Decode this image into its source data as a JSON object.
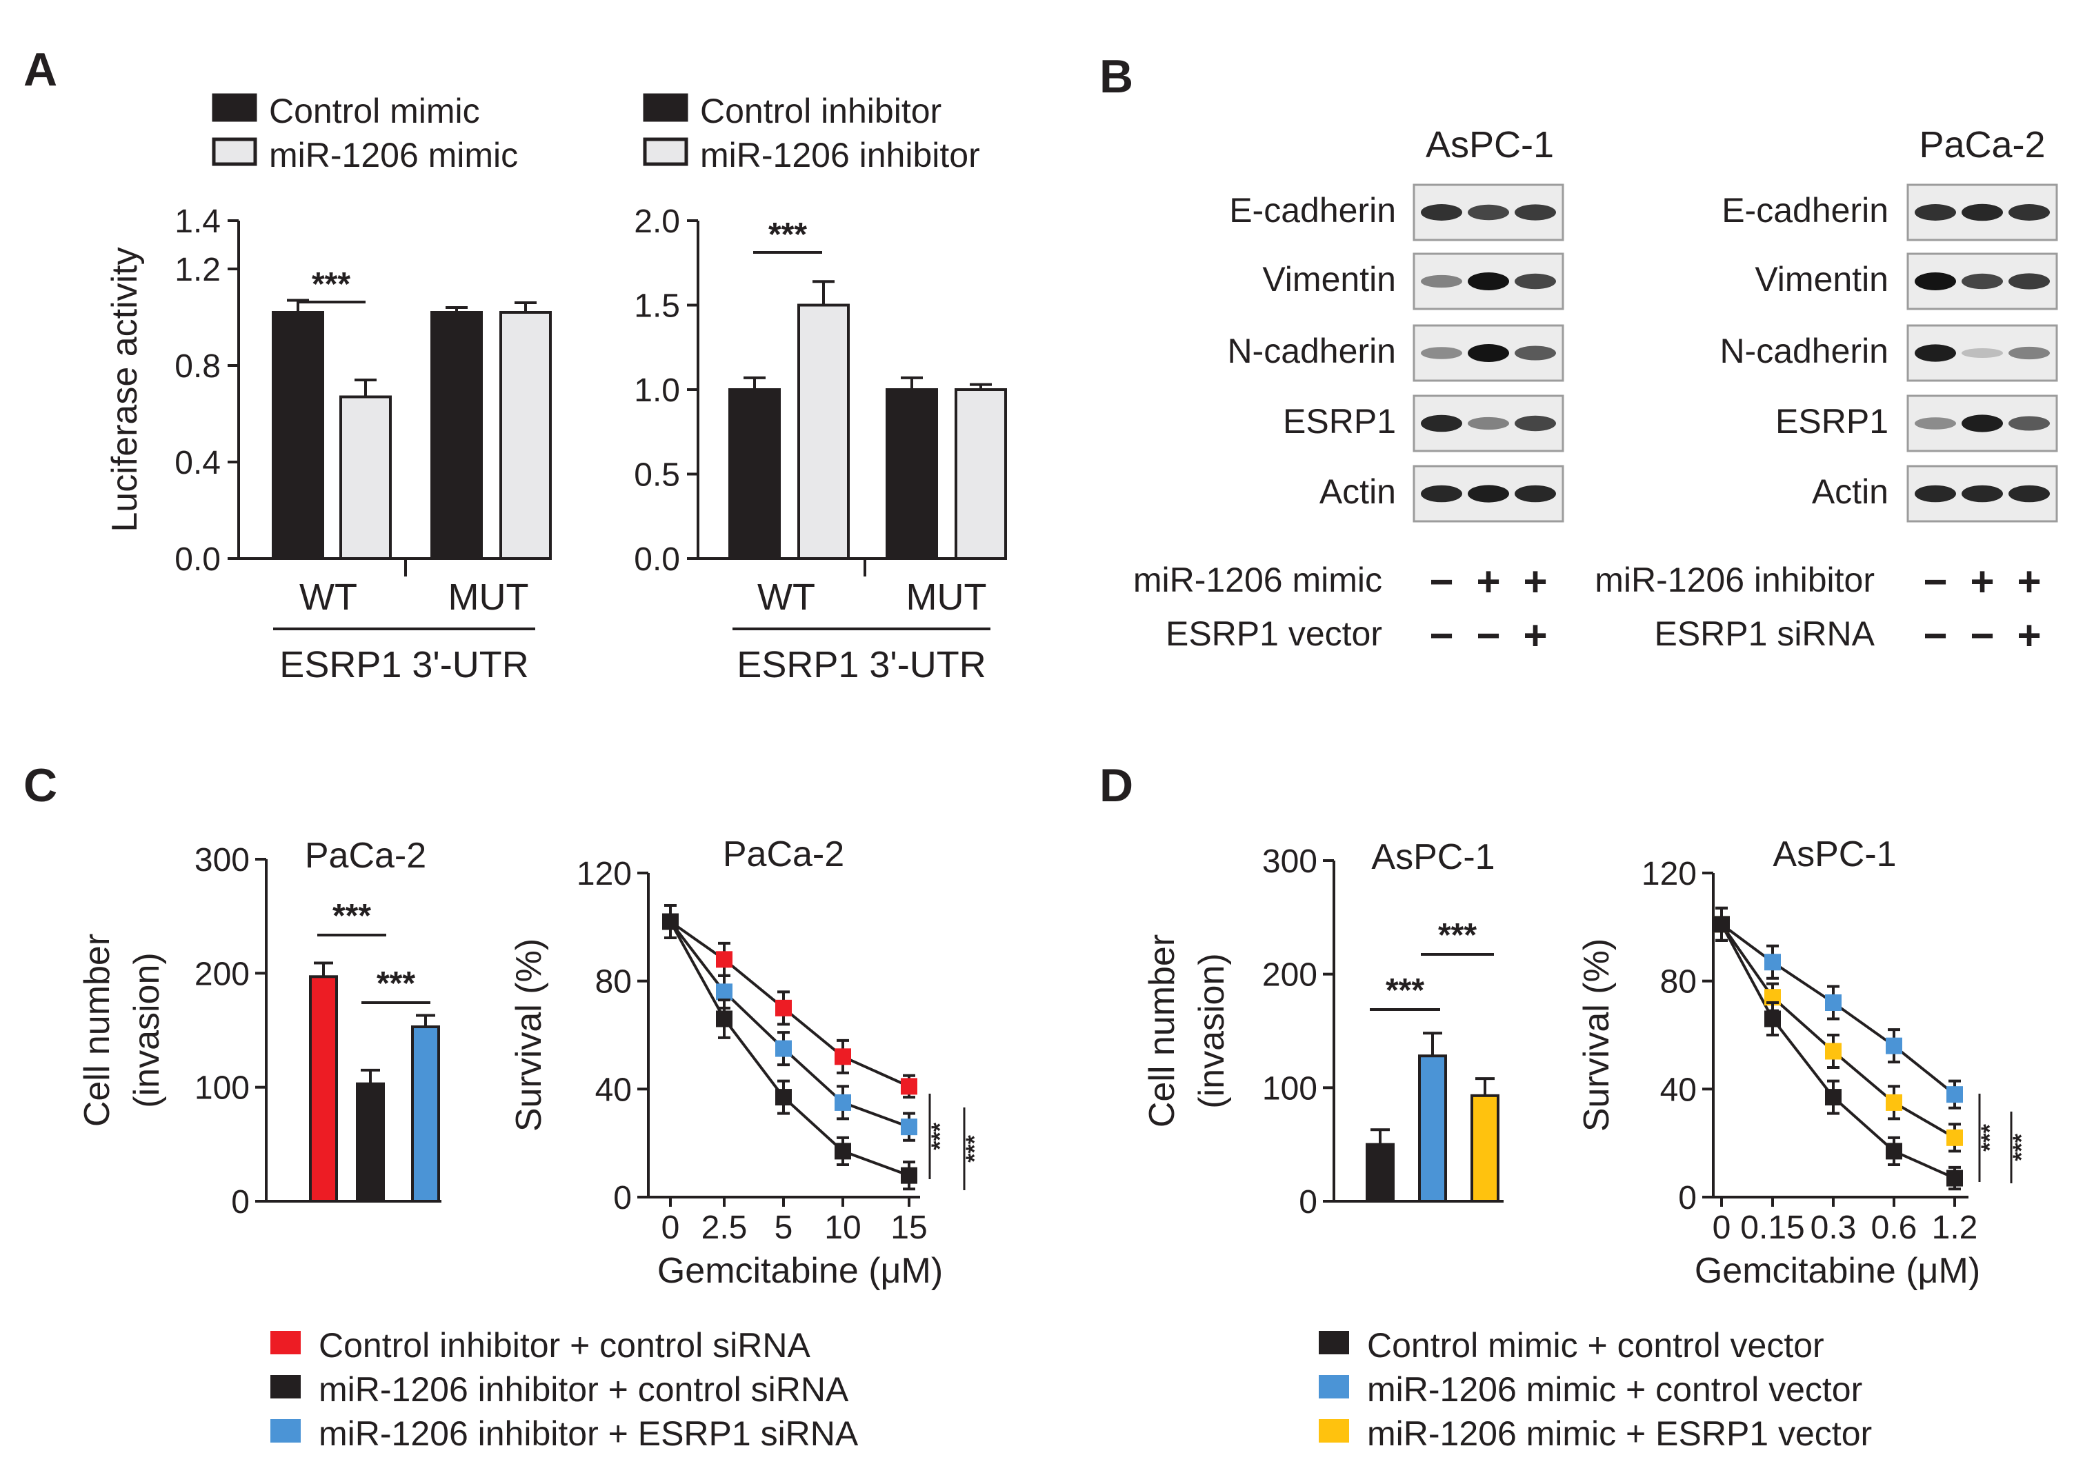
{
  "figure": {
    "panel_A": {
      "letter": "A",
      "left": {
        "legend": [
          "Control mimic",
          "miR-1206 mimic"
        ],
        "ylabel": "Luciferase activity",
        "yticks": [
          "0.0",
          "0.4",
          "0.8",
          "1.2",
          "1.4"
        ],
        "groups": [
          "WT",
          "MUT"
        ],
        "xlabel": "ESRP1 3'-UTR",
        "sig": "***"
      },
      "right": {
        "legend": [
          "Control inhibitor",
          "miR-1206 inhibitor"
        ],
        "yticks": [
          "0.0",
          "0.5",
          "1.0",
          "1.5",
          "2.0"
        ],
        "groups": [
          "WT",
          "MUT"
        ],
        "xlabel": "ESRP1 3'-UTR",
        "sig": "***"
      }
    },
    "panel_B": {
      "letter": "B",
      "left": {
        "cell_line": "AsPC-1",
        "proteins": [
          "E-cadherin",
          "Vimentin",
          "N-cadherin",
          "ESRP1",
          "Actin"
        ],
        "conditions": [
          {
            "label": "miR-1206 mimic",
            "signs": [
              "−",
              "+",
              "+"
            ]
          },
          {
            "label": "ESRP1 vector",
            "signs": [
              "−",
              "−",
              "+"
            ]
          }
        ],
        "band_intensity": [
          [
            0.85,
            0.75,
            0.8
          ],
          [
            0.45,
            1.0,
            0.75
          ],
          [
            0.4,
            1.0,
            0.65
          ],
          [
            0.9,
            0.45,
            0.75
          ],
          [
            0.9,
            0.95,
            0.9
          ]
        ]
      },
      "right": {
        "cell_line": "PaCa-2",
        "proteins": [
          "E-cadherin",
          "Vimentin",
          "N-cadherin",
          "ESRP1",
          "Actin"
        ],
        "conditions": [
          {
            "label": "miR-1206 inhibitor",
            "signs": [
              "−",
              "+",
              "+"
            ]
          },
          {
            "label": "ESRP1 siRNA",
            "signs": [
              "−",
              "−",
              "+"
            ]
          }
        ],
        "band_intensity": [
          [
            0.85,
            0.9,
            0.85
          ],
          [
            1.0,
            0.75,
            0.8
          ],
          [
            0.95,
            0.15,
            0.45
          ],
          [
            0.4,
            0.95,
            0.65
          ],
          [
            0.9,
            0.9,
            0.9
          ]
        ]
      }
    },
    "panel_C": {
      "letter": "C",
      "legend": [
        {
          "label": "Control inhibitor + control siRNA",
          "color": "#ed1c24"
        },
        {
          "label": "miR-1206 inhibitor + control siRNA",
          "color": "#231f20"
        },
        {
          "label": "miR-1206 inhibitor + ESRP1 siRNA",
          "color": "#4b94d6"
        }
      ],
      "bar": {
        "title": "PaCa-2",
        "ylabel_lines": [
          "Cell number",
          "(invasion)"
        ],
        "yticks": [
          "0",
          "100",
          "200",
          "300"
        ],
        "sig": [
          "***",
          "***"
        ]
      },
      "line": {
        "title": "PaCa-2",
        "ylabel": "Survival (%)",
        "yticks": [
          "0",
          "40",
          "80",
          "120"
        ],
        "xticks": [
          "0",
          "2.5",
          "5",
          "10",
          "15"
        ],
        "xlabel": "Gemcitabine (μM)",
        "sig": [
          "***",
          "***"
        ]
      }
    },
    "panel_D": {
      "letter": "D",
      "legend": [
        {
          "label": "Control mimic + control vector",
          "color": "#231f20"
        },
        {
          "label": "miR-1206 mimic + control vector",
          "color": "#4b94d6"
        },
        {
          "label": "miR-1206 mimic + ESRP1 vector",
          "color": "#ffc20e"
        }
      ],
      "bar": {
        "title": "AsPC-1",
        "ylabel_lines": [
          "Cell number",
          "(invasion)"
        ],
        "yticks": [
          "0",
          "100",
          "200",
          "300"
        ],
        "sig": [
          "***",
          "***"
        ]
      },
      "line": {
        "title": "AsPC-1",
        "ylabel": "Survival (%)",
        "yticks": [
          "0",
          "40",
          "80",
          "120"
        ],
        "xticks": [
          "0",
          "0.15",
          "0.3",
          "0.6",
          "1.2"
        ],
        "xlabel": "Gemcitabine (μM)",
        "sig": [
          "***",
          "***"
        ]
      }
    }
  },
  "chart_data": [
    {
      "id": "A-left",
      "type": "bar",
      "categories": [
        "WT",
        "MUT"
      ],
      "series": [
        {
          "name": "Control mimic",
          "values": [
            1.02,
            1.02
          ],
          "errors": [
            0.05,
            0.02
          ],
          "color": "#231f20"
        },
        {
          "name": "miR-1206 mimic",
          "values": [
            0.67,
            1.02
          ],
          "errors": [
            0.07,
            0.04
          ],
          "color": "#e8e8ea"
        }
      ],
      "ylabel": "Luciferase activity",
      "xlabel": "ESRP1 3'-UTR",
      "ylim": [
        0,
        1.4
      ]
    },
    {
      "id": "A-right",
      "type": "bar",
      "categories": [
        "WT",
        "MUT"
      ],
      "series": [
        {
          "name": "Control inhibitor",
          "values": [
            1.0,
            1.0
          ],
          "errors": [
            0.07,
            0.07
          ],
          "color": "#231f20"
        },
        {
          "name": "miR-1206 inhibitor",
          "values": [
            1.5,
            1.0
          ],
          "errors": [
            0.14,
            0.03
          ],
          "color": "#e8e8ea"
        }
      ],
      "ylabel": "",
      "xlabel": "ESRP1 3'-UTR",
      "ylim": [
        0,
        2.0
      ]
    },
    {
      "id": "C-bar",
      "type": "bar",
      "title": "PaCa-2",
      "series": [
        {
          "name": "Control inhibitor + control siRNA",
          "values": [
            197
          ],
          "errors": [
            12
          ],
          "color": "#ed1c24"
        },
        {
          "name": "miR-1206 inhibitor + control siRNA",
          "values": [
            103
          ],
          "errors": [
            12
          ],
          "color": "#231f20"
        },
        {
          "name": "miR-1206 inhibitor + ESRP1 siRNA",
          "values": [
            153
          ],
          "errors": [
            10
          ],
          "color": "#4b94d6"
        }
      ],
      "ylabel": "Cell number (invasion)",
      "ylim": [
        0,
        300
      ]
    },
    {
      "id": "C-line",
      "type": "line",
      "title": "PaCa-2",
      "x": [
        "0",
        "2.5",
        "5",
        "10",
        "15"
      ],
      "series": [
        {
          "name": "Control inhibitor + control siRNA",
          "values": [
            102,
            88,
            70,
            52,
            41
          ],
          "errors": [
            6,
            6,
            6,
            6,
            4
          ],
          "color": "#ed1c24"
        },
        {
          "name": "miR-1206 inhibitor + ESRP1 siRNA",
          "values": [
            102,
            76,
            55,
            35,
            26
          ],
          "errors": [
            6,
            6,
            6,
            6,
            5
          ],
          "color": "#4b94d6"
        },
        {
          "name": "miR-1206 inhibitor + control siRNA",
          "values": [
            102,
            66,
            37,
            17,
            8
          ],
          "errors": [
            6,
            7,
            6,
            5,
            5
          ],
          "color": "#231f20"
        }
      ],
      "ylabel": "Survival (%)",
      "xlabel": "Gemcitabine (μM)",
      "ylim": [
        0,
        120
      ]
    },
    {
      "id": "D-bar",
      "type": "bar",
      "title": "AsPC-1",
      "series": [
        {
          "name": "Control mimic + control vector",
          "values": [
            50
          ],
          "errors": [
            13
          ],
          "color": "#231f20"
        },
        {
          "name": "miR-1206 mimic + control vector",
          "values": [
            128
          ],
          "errors": [
            20
          ],
          "color": "#4b94d6"
        },
        {
          "name": "miR-1206 mimic + ESRP1 vector",
          "values": [
            93
          ],
          "errors": [
            15
          ],
          "color": "#ffc20e"
        }
      ],
      "ylabel": "Cell number (invasion)",
      "ylim": [
        0,
        300
      ]
    },
    {
      "id": "D-line",
      "type": "line",
      "title": "AsPC-1",
      "x": [
        "0",
        "0.15",
        "0.3",
        "0.6",
        "1.2"
      ],
      "series": [
        {
          "name": "miR-1206 mimic + control vector",
          "values": [
            101,
            87,
            72,
            56,
            38
          ],
          "errors": [
            6,
            6,
            6,
            6,
            5
          ],
          "color": "#4b94d6"
        },
        {
          "name": "miR-1206 mimic + ESRP1 vector",
          "values": [
            101,
            74,
            54,
            35,
            22
          ],
          "errors": [
            6,
            5,
            6,
            6,
            5
          ],
          "color": "#ffc20e"
        },
        {
          "name": "Control mimic + control vector",
          "values": [
            101,
            66,
            37,
            17,
            7
          ],
          "errors": [
            6,
            6,
            6,
            5,
            4
          ],
          "color": "#231f20"
        }
      ],
      "ylabel": "Survival (%)",
      "xlabel": "Gemcitabine (μM)",
      "ylim": [
        0,
        120
      ]
    }
  ]
}
